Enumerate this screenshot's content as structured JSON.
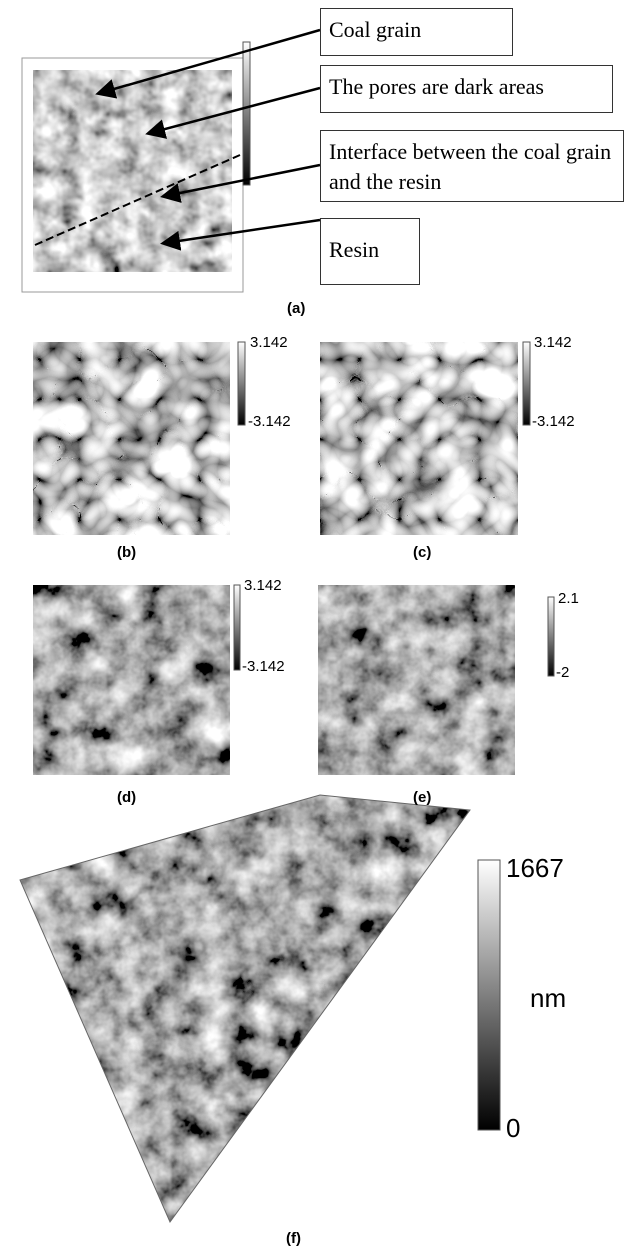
{
  "panel_a": {
    "annotations": [
      "Coal grain",
      "The pores are dark areas",
      "Interface between the coal grain and the resin",
      "Resin"
    ],
    "label": "(a)"
  },
  "panels": [
    {
      "label": "(b)",
      "colorbar_max": "3.142",
      "colorbar_min": "-3.142"
    },
    {
      "label": "(c)",
      "colorbar_max": "3.142",
      "colorbar_min": "-3.142"
    },
    {
      "label": "(d)",
      "colorbar_max": "3.142",
      "colorbar_min": "-3.142"
    },
    {
      "label": "(e)",
      "colorbar_max": "2.1",
      "colorbar_min": "-2"
    }
  ],
  "panel_f": {
    "label": "(f)",
    "colorbar_max": "1667",
    "colorbar_unit": "nm",
    "colorbar_min": "0"
  }
}
